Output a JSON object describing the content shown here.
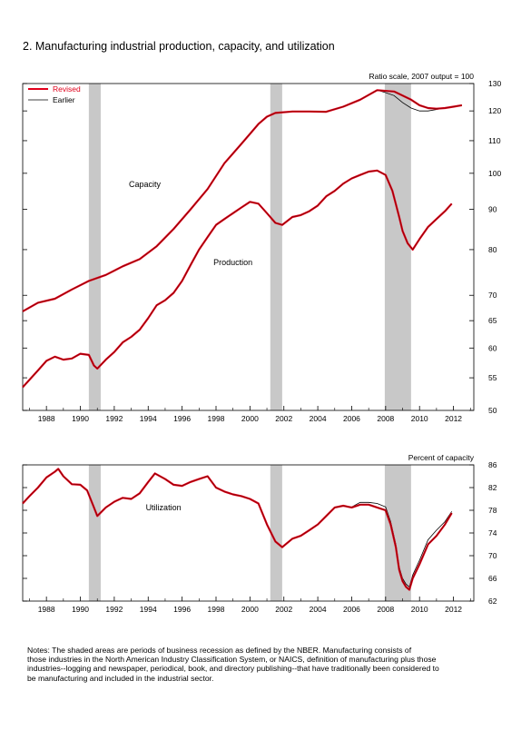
{
  "figure": {
    "title": "2. Manufacturing industrial production, capacity, and utilization",
    "notes": [
      "   Notes: The shaded areas are periods of business recession as defined by the NBER. Manufacturing consists of",
      "those industries in the North American Industry Classification System, or NAICS, definition of manufacturing plus those",
      "industries--logging and newspaper, periodical, book, and directory  publishing--that have traditionally been considered to",
      "be manufacturing and included in the industrial sector."
    ]
  },
  "colors": {
    "revised": "#e0001b",
    "revised_dark": "#7a0000",
    "earlier": "#000000",
    "recession": "#c8c8c8"
  },
  "chart_data": [
    {
      "type": "line",
      "axis_note": "Ratio scale, 2007 output = 100",
      "scale": "log",
      "xlim": [
        1986.6,
        2013.2
      ],
      "ylim": [
        50,
        130
      ],
      "x_ticks": [
        1988,
        1990,
        1992,
        1994,
        1996,
        1998,
        2000,
        2002,
        2004,
        2006,
        2008,
        2010,
        2012
      ],
      "y_ticks": [
        50,
        55,
        60,
        65,
        70,
        80,
        90,
        100,
        110,
        120,
        130
      ],
      "legend": {
        "position": "top-left",
        "entries": [
          {
            "label": "Revised",
            "color": "#e0001b"
          },
          {
            "label": "Earlier",
            "color": "#000000"
          }
        ]
      },
      "annotations": [
        {
          "text": "Capacity",
          "x": 1993.8,
          "y": 96
        },
        {
          "text": "Production",
          "x": 1999.0,
          "y": 76.5
        }
      ],
      "recessions": [
        [
          1990.5,
          1991.2
        ],
        [
          2001.2,
          2001.9
        ],
        [
          2007.95,
          2009.5
        ]
      ],
      "series": [
        {
          "name": "Capacity",
          "version": "Revised",
          "x": [
            1986.6,
            1987.5,
            1988.5,
            1989.5,
            1990.5,
            1991.5,
            1992.5,
            1993.5,
            1994.5,
            1995.5,
            1996.5,
            1997.5,
            1998.5,
            1999.5,
            2000.5,
            2001.0,
            2001.5,
            2002.5,
            2003.5,
            2004.5,
            2005.5,
            2006.5,
            2007.5,
            2008.5,
            2009.5,
            2010.0,
            2010.5,
            2011.0,
            2011.5,
            2012.0,
            2012.5
          ],
          "y": [
            66.8,
            68.5,
            69.3,
            71.2,
            73.0,
            74.3,
            76.2,
            77.8,
            80.8,
            85.0,
            90.0,
            95.5,
            103.0,
            109.0,
            115.5,
            118.0,
            119.3,
            119.8,
            119.8,
            119.7,
            121.5,
            124.0,
            127.5,
            127.0,
            124.0,
            122.0,
            121.0,
            120.8,
            121.0,
            121.5,
            122.0
          ]
        },
        {
          "name": "Capacity",
          "version": "Earlier",
          "x": [
            2007.5,
            2008.0,
            2008.5,
            2009.0,
            2009.5,
            2010.0,
            2010.5,
            2011.0,
            2011.5,
            2012.0,
            2012.5
          ],
          "y": [
            127.5,
            126.6,
            125.5,
            123.0,
            121.0,
            120.0,
            120.0,
            120.5,
            121.0,
            121.5,
            122.0
          ]
        },
        {
          "name": "Production",
          "version": "Revised",
          "x": [
            1986.6,
            1987.5,
            1988.0,
            1988.5,
            1989.0,
            1989.5,
            1990.0,
            1990.5,
            1990.8,
            1991.0,
            1991.5,
            1992.0,
            1992.5,
            1993.0,
            1993.5,
            1994.0,
            1994.5,
            1995.0,
            1995.5,
            1996.0,
            1996.5,
            1997.0,
            1997.5,
            1998.0,
            1998.5,
            1999.0,
            1999.5,
            2000.0,
            2000.5,
            2001.0,
            2001.5,
            2001.9,
            2002.5,
            2003.0,
            2003.5,
            2004.0,
            2004.5,
            2005.0,
            2005.5,
            2006.0,
            2006.5,
            2007.0,
            2007.5,
            2008.0,
            2008.4,
            2008.8,
            2009.0,
            2009.3,
            2009.6,
            2010.0,
            2010.5,
            2011.0,
            2011.5,
            2011.9
          ],
          "y": [
            53.5,
            56.2,
            57.8,
            58.5,
            58.0,
            58.2,
            59.0,
            58.8,
            57.0,
            56.5,
            58.0,
            59.3,
            61.0,
            62.0,
            63.3,
            65.5,
            68.0,
            69.0,
            70.5,
            73.0,
            76.5,
            80.0,
            83.0,
            86.0,
            87.5,
            89.0,
            90.5,
            92.0,
            91.5,
            89.0,
            86.5,
            86.0,
            88.0,
            88.5,
            89.5,
            91.0,
            93.5,
            95.0,
            97.0,
            98.5,
            99.5,
            100.5,
            100.8,
            99.5,
            95.0,
            88.0,
            84.5,
            81.5,
            80.0,
            82.5,
            85.5,
            87.5,
            89.5,
            91.5
          ]
        }
      ]
    },
    {
      "type": "line",
      "axis_note": "Percent of capacity",
      "xlim": [
        1986.6,
        2013.2
      ],
      "ylim": [
        62,
        86
      ],
      "x_ticks": [
        1988,
        1990,
        1992,
        1994,
        1996,
        1998,
        2000,
        2002,
        2004,
        2006,
        2008,
        2010,
        2012
      ],
      "y_ticks": [
        62,
        66,
        70,
        74,
        78,
        82,
        86
      ],
      "annotations": [
        {
          "text": "Utilization",
          "x": 1994.9,
          "y": 78
        }
      ],
      "recessions": [
        [
          1990.5,
          1991.2
        ],
        [
          2001.2,
          2001.9
        ],
        [
          2007.95,
          2009.5
        ]
      ],
      "series": [
        {
          "name": "Utilization",
          "version": "Revised",
          "x": [
            1986.6,
            1987.0,
            1987.5,
            1988.0,
            1988.5,
            1988.7,
            1989.0,
            1989.5,
            1990.0,
            1990.4,
            1990.8,
            1991.0,
            1991.5,
            1992.0,
            1992.5,
            1993.0,
            1993.5,
            1994.0,
            1994.4,
            1995.0,
            1995.5,
            1996.0,
            1996.5,
            1997.0,
            1997.5,
            1998.0,
            1998.5,
            1999.0,
            1999.5,
            2000.0,
            2000.5,
            2001.0,
            2001.5,
            2001.9,
            2002.5,
            2003.0,
            2003.5,
            2004.0,
            2004.5,
            2005.0,
            2005.5,
            2006.0,
            2006.5,
            2007.0,
            2007.5,
            2008.0,
            2008.3,
            2008.6,
            2008.8,
            2009.0,
            2009.2,
            2009.4,
            2009.6,
            2010.0,
            2010.5,
            2011.0,
            2011.5,
            2011.9
          ],
          "y": [
            79.2,
            80.5,
            82.0,
            83.8,
            84.8,
            85.3,
            84.0,
            82.6,
            82.5,
            81.5,
            78.5,
            77.0,
            78.5,
            79.5,
            80.2,
            80.0,
            81.0,
            83.0,
            84.5,
            83.5,
            82.5,
            82.3,
            83.0,
            83.5,
            84.0,
            82.0,
            81.3,
            80.8,
            80.5,
            80.0,
            79.2,
            75.5,
            72.5,
            71.5,
            73.0,
            73.5,
            74.5,
            75.5,
            77.0,
            78.5,
            78.8,
            78.5,
            79.0,
            79.0,
            78.5,
            78.0,
            75.5,
            71.5,
            67.5,
            65.5,
            64.5,
            64.0,
            66.0,
            68.5,
            72.0,
            73.5,
            75.5,
            77.5
          ]
        },
        {
          "name": "Utilization",
          "version": "Earlier",
          "x": [
            2006.0,
            2006.5,
            2007.0,
            2007.5,
            2008.0,
            2008.3,
            2008.6,
            2008.8,
            2009.0,
            2009.2,
            2009.4,
            2009.6,
            2010.0,
            2010.5,
            2011.0,
            2011.5,
            2011.9
          ],
          "y": [
            78.6,
            79.4,
            79.4,
            79.2,
            78.6,
            76.0,
            72.0,
            68.0,
            66.0,
            65.0,
            64.5,
            66.6,
            69.2,
            72.8,
            74.5,
            76.0,
            77.8
          ]
        }
      ]
    }
  ]
}
